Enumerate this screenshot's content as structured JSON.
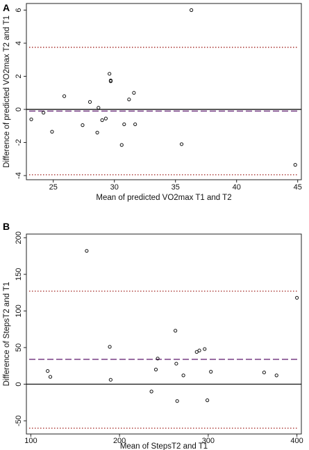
{
  "chart_data": [
    {
      "panel_label": "A",
      "type": "scatter",
      "title": "",
      "xlabel": "Mean of predicted VO2max T1 and T2",
      "ylabel": "Difference of predicted VO2max T2 and T1",
      "xlim": [
        22.8,
        45.3
      ],
      "ylim": [
        -4.25,
        6.4
      ],
      "xticks": [
        25,
        30,
        35,
        40,
        45
      ],
      "yticks": [
        -4,
        -2,
        0,
        2,
        4,
        6
      ],
      "reference_lines": {
        "zero": 0,
        "mean_difference": -0.1,
        "upper_limit": 3.75,
        "lower_limit": -3.95
      },
      "points": [
        [
          23.2,
          -0.6
        ],
        [
          24.2,
          -0.2
        ],
        [
          24.9,
          -1.35
        ],
        [
          25.9,
          0.8
        ],
        [
          27.4,
          -0.95
        ],
        [
          28.0,
          0.45
        ],
        [
          28.6,
          -1.4
        ],
        [
          28.7,
          0.1
        ],
        [
          29.0,
          -0.65
        ],
        [
          29.3,
          -0.55
        ],
        [
          29.6,
          2.15
        ],
        [
          29.7,
          1.75
        ],
        [
          29.7,
          1.7
        ],
        [
          30.6,
          -2.15
        ],
        [
          30.8,
          -0.9
        ],
        [
          31.2,
          0.6
        ],
        [
          31.6,
          1.0
        ],
        [
          31.7,
          -0.9
        ],
        [
          35.5,
          -2.1
        ],
        [
          36.3,
          6.0
        ],
        [
          44.8,
          -3.35
        ]
      ]
    },
    {
      "panel_label": "B",
      "type": "scatter",
      "title": "",
      "xlabel": "Mean of StepsT2 and T1",
      "ylabel": "Difference of StepsT2 and T1",
      "xlim": [
        95,
        405
      ],
      "ylim": [
        -68,
        205
      ],
      "xticks": [
        100,
        200,
        300,
        400
      ],
      "yticks": [
        -50,
        0,
        50,
        100,
        150,
        200
      ],
      "reference_lines": {
        "zero": 0,
        "mean_difference": 34,
        "upper_limit": 127,
        "lower_limit": -60
      },
      "points": [
        [
          119,
          18
        ],
        [
          122,
          10
        ],
        [
          163,
          182
        ],
        [
          189,
          51
        ],
        [
          190,
          6
        ],
        [
          236,
          -10
        ],
        [
          241,
          20
        ],
        [
          243,
          35
        ],
        [
          263,
          73
        ],
        [
          264,
          28
        ],
        [
          265,
          -23
        ],
        [
          272,
          12
        ],
        [
          287,
          44
        ],
        [
          290,
          46
        ],
        [
          296,
          48
        ],
        [
          299,
          -22
        ],
        [
          303,
          17
        ],
        [
          363,
          16
        ],
        [
          377,
          12
        ],
        [
          400,
          118
        ]
      ]
    }
  ]
}
